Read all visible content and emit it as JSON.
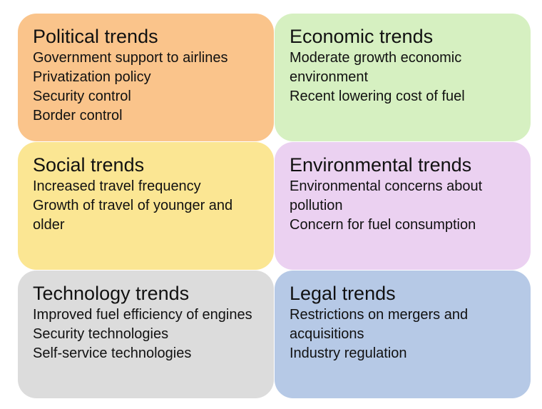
{
  "boxes": [
    {
      "title": "Political trends",
      "color": "#fac48b",
      "items": [
        "Government support to airlines",
        "Privatization policy",
        "Security control",
        "Border control"
      ]
    },
    {
      "title": "Economic trends",
      "color": "#d6f0c1",
      "items": [
        "Moderate growth economic environment",
        "Recent lowering cost of fuel"
      ]
    },
    {
      "title": "Social trends",
      "color": "#fbe693",
      "items": [
        "Increased travel frequency",
        "Growth of travel of younger and older"
      ]
    },
    {
      "title": "Environmental trends",
      "color": "#ebd1f1",
      "items": [
        "Environmental concerns about pollution",
        "Concern for fuel consumption"
      ]
    },
    {
      "title": "Technology trends",
      "color": "#dcdcdc",
      "items": [
        "Improved fuel efficiency of engines",
        "Security technologies",
        "Self-service technologies"
      ]
    },
    {
      "title": "Legal trends",
      "color": "#b6c9e6",
      "items": [
        "Restrictions on mergers and acquisitions",
        "Industry regulation"
      ]
    }
  ]
}
